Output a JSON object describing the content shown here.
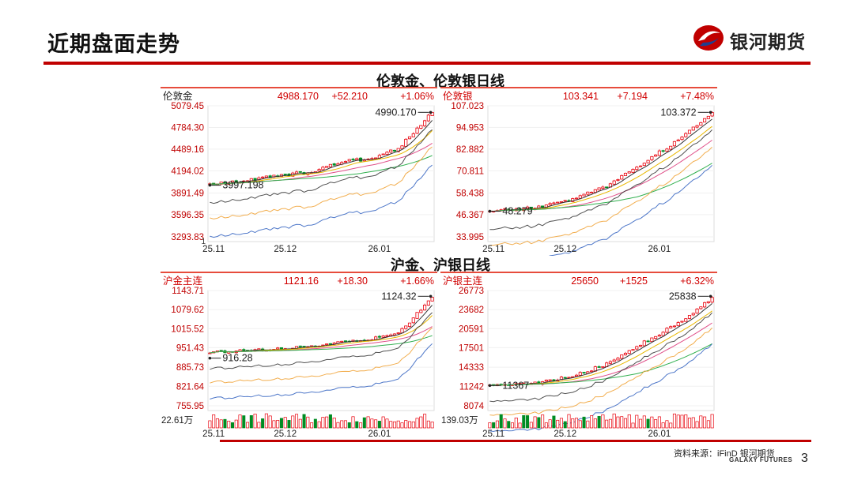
{
  "slide": {
    "title": "近期盘面走势",
    "logo_text": "银河期货",
    "section_top": "伦敦金、伦敦银日线",
    "section_bottom": "沪金、沪银日线",
    "source": "资料来源：iFinD 银河期货",
    "source_sub": "GALAXY FUTURES",
    "page_number": "3",
    "colors": {
      "brand_red": "#c00000",
      "up": "#e8000b",
      "down": "#008c23"
    }
  },
  "chart_data": [
    {
      "type": "candlestick",
      "name": "伦敦金",
      "price": "4988.170",
      "change": "+52.210",
      "pct": "+1.06%",
      "y_ticks": [
        "5079.45",
        "4784.30",
        "4489.16",
        "4194.02",
        "3891.49",
        "3596.35",
        "3293.83"
      ],
      "ylim": [
        3293.83,
        5079.45
      ],
      "bottom_tick": "1",
      "volume_label": "",
      "x_ticks": [
        "25.11",
        "25.12",
        "26.01"
      ],
      "x_tick_index": [
        1,
        20,
        45
      ],
      "high_mark": {
        "label": "4990.170",
        "value": 4990.17
      },
      "low_mark": {
        "label": "3997.198",
        "value": 3997.198
      },
      "start": 4000,
      "end": 4990,
      "path": [
        [
          0,
          4000
        ],
        [
          0.25,
          4100
        ],
        [
          0.45,
          4180
        ],
        [
          0.6,
          4320
        ],
        [
          0.72,
          4360
        ],
        [
          0.85,
          4500
        ],
        [
          1,
          4990
        ]
      ]
    },
    {
      "type": "candlestick",
      "name": "伦敦银",
      "price": "103.341",
      "change": "+7.194",
      "pct": "+7.48%",
      "y_ticks": [
        "107.023",
        "94.953",
        "82.882",
        "70.811",
        "58.438",
        "46.367",
        "33.995"
      ],
      "ylim": [
        33.995,
        107.023
      ],
      "bottom_tick": "",
      "volume_label": "",
      "x_ticks": [
        "25.11",
        "25.12",
        "26.01"
      ],
      "x_tick_index": [
        1,
        20,
        45
      ],
      "high_mark": {
        "label": "103.372",
        "value": 103.372
      },
      "low_mark": {
        "label": "48.279",
        "value": 48.279
      },
      "start": 49,
      "end": 103.3,
      "path": [
        [
          0,
          49
        ],
        [
          0.2,
          50
        ],
        [
          0.4,
          56
        ],
        [
          0.55,
          64
        ],
        [
          0.7,
          76
        ],
        [
          0.85,
          88
        ],
        [
          1,
          103.3
        ]
      ]
    },
    {
      "type": "candlestick",
      "name": "沪金主连",
      "price": "1121.16",
      "change": "+18.30",
      "pct": "+1.66%",
      "y_ticks": [
        "1143.71",
        "1079.62",
        "1015.52",
        "951.43",
        "885.73",
        "821.64",
        "755.95"
      ],
      "ylim": [
        755.95,
        1143.71
      ],
      "bottom_tick": "",
      "volume_label": "22.61万",
      "x_ticks": [
        "25.11",
        "25.12",
        "26.01"
      ],
      "x_tick_index": [
        1,
        20,
        45
      ],
      "high_mark": {
        "label": "1124.32",
        "value": 1124.32
      },
      "low_mark": {
        "label": "916.28",
        "value": 916.28
      },
      "start": 935,
      "end": 1121,
      "path": [
        [
          0,
          935
        ],
        [
          0.25,
          945
        ],
        [
          0.45,
          955
        ],
        [
          0.6,
          975
        ],
        [
          0.72,
          980
        ],
        [
          0.85,
          1000
        ],
        [
          1,
          1121
        ]
      ]
    },
    {
      "type": "candlestick",
      "name": "沪银主连",
      "price": "25650",
      "change": "+1525",
      "pct": "+6.32%",
      "y_ticks": [
        "26773",
        "23682",
        "20591",
        "17501",
        "14333",
        "11242",
        "8074"
      ],
      "ylim": [
        8074,
        26773
      ],
      "bottom_tick": "",
      "volume_label": "139.03万",
      "x_ticks": [
        "25.11",
        "25.12",
        "26.01"
      ],
      "x_tick_index": [
        1,
        20,
        45
      ],
      "high_mark": {
        "label": "25838",
        "value": 25838
      },
      "low_mark": {
        "label": "11367",
        "value": 11367
      },
      "start": 11400,
      "end": 25650,
      "path": [
        [
          0,
          11400
        ],
        [
          0.2,
          11700
        ],
        [
          0.4,
          13200
        ],
        [
          0.55,
          15200
        ],
        [
          0.7,
          18500
        ],
        [
          0.85,
          21500
        ],
        [
          1,
          25650
        ]
      ]
    }
  ]
}
